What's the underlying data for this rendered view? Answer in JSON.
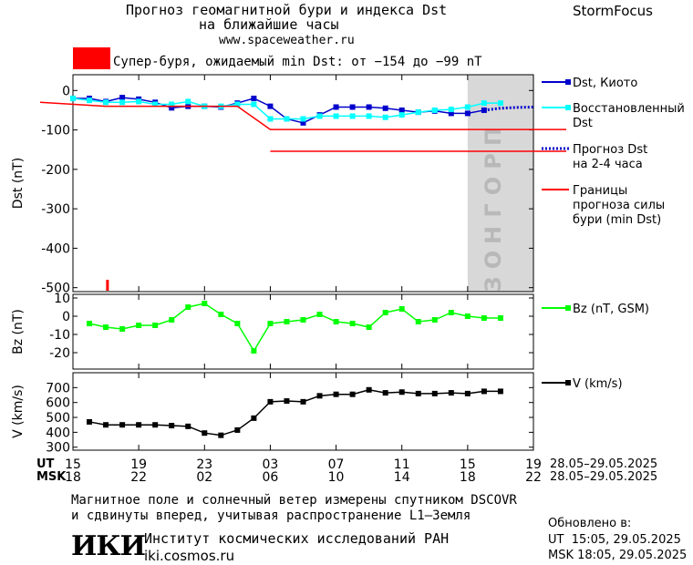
{
  "header": {
    "title_line1": "Прогноз геомагнитной бури и индекса Dst",
    "title_line2": "на ближайшие часы",
    "url": "www.spaceweather.ru",
    "brand": "StormFocus"
  },
  "alert": {
    "text": "Супер-буря, ожидаемый min Dst: от −154 до −99 nT",
    "color": "#ff0000"
  },
  "forecast_zone_label": "ПРОГНОЗ",
  "chart_data": [
    {
      "type": "line",
      "ylabel": "Dst (nT)",
      "ylim": [
        -510,
        40
      ],
      "yticks": [
        0,
        -100,
        -200,
        -300,
        -400,
        -500
      ],
      "grid": false,
      "legend_position": "right",
      "legend_entries": [
        "Dst, Киото",
        "Восстановленный Dst",
        "Прогноз Dst на 2-4 часа",
        "Границы прогноза силы бури (min Dst)"
      ],
      "series": [
        {
          "name": "Dst, Киото",
          "color": "#0000cc",
          "marker": "square",
          "x": [
            15,
            16,
            17,
            18,
            19,
            20,
            21,
            22,
            23,
            24,
            25,
            26,
            27,
            28,
            29,
            30,
            31,
            32,
            33,
            34,
            35,
            36,
            37,
            38,
            39,
            40
          ],
          "y": [
            -20,
            -20,
            -28,
            -18,
            -22,
            -30,
            -44,
            -40,
            -40,
            -42,
            -32,
            -20,
            -40,
            -72,
            -82,
            -62,
            -42,
            -42,
            -42,
            -45,
            -50,
            -55,
            -52,
            -58,
            -58,
            -50
          ]
        },
        {
          "name": "Восстановленный Dst",
          "color": "#00ffff",
          "marker": "square",
          "x": [
            15,
            16,
            17,
            18,
            19,
            20,
            21,
            22,
            23,
            24,
            25,
            26,
            27,
            28,
            29,
            30,
            31,
            32,
            33,
            34,
            35,
            36,
            37,
            38,
            39,
            40,
            41
          ],
          "y": [
            -20,
            -25,
            -30,
            -30,
            -28,
            -35,
            -35,
            -28,
            -40,
            -40,
            -35,
            -35,
            -72,
            -72,
            -72,
            -65,
            -65,
            -65,
            -65,
            -68,
            -62,
            -55,
            -50,
            -48,
            -42,
            -32,
            -32
          ]
        },
        {
          "name": "Прогноз Dst на 2-4 часа",
          "color": "#0000cc",
          "style": "dotted",
          "x": [
            40,
            41,
            42,
            43
          ],
          "y": [
            -50,
            -45,
            -43,
            -42
          ]
        },
        {
          "name": "Границы прогноза силы бури (min Dst)",
          "color": "#ff0000",
          "x": [
            13,
            17,
            25,
            27,
            45
          ],
          "y": [
            -30,
            -40,
            -40,
            -99,
            -99
          ]
        },
        {
          "name": "Границы прогноза силы бури (min Dst)",
          "color": "#ff0000",
          "x": [
            27,
            45
          ],
          "y": [
            -154,
            -154
          ]
        }
      ]
    },
    {
      "type": "line",
      "ylabel": "Bz (nT)",
      "ylim": [
        -29,
        12
      ],
      "yticks": [
        10,
        0,
        -10,
        -20
      ],
      "legend_position": "right",
      "legend_entries": [
        "Bz (nT, GSM)"
      ],
      "series": [
        {
          "name": "Bz (nT, GSM)",
          "color": "#00ff00",
          "marker": "square",
          "x": [
            16,
            17,
            18,
            19,
            20,
            21,
            22,
            23,
            24,
            25,
            26,
            27,
            28,
            29,
            30,
            31,
            32,
            33,
            34,
            35,
            36,
            37,
            38,
            39,
            40,
            41
          ],
          "y": [
            -4,
            -6,
            -7,
            -5,
            -5,
            -2,
            5,
            7,
            1,
            -4,
            -19,
            -4,
            -3,
            -2,
            1,
            -3,
            -4,
            -6,
            2,
            4,
            -3,
            -2,
            2,
            0,
            -1,
            -1
          ]
        }
      ]
    },
    {
      "type": "line",
      "ylabel": "V (km/s)",
      "ylim": [
        280,
        800
      ],
      "yticks": [
        700,
        600,
        500,
        400,
        300
      ],
      "legend_position": "right",
      "legend_entries": [
        "V (km/s)"
      ],
      "series": [
        {
          "name": "V (km/s)",
          "color": "#000000",
          "marker": "square",
          "x": [
            16,
            17,
            18,
            19,
            20,
            21,
            22,
            23,
            24,
            25,
            26,
            27,
            28,
            29,
            30,
            31,
            32,
            33,
            34,
            35,
            36,
            37,
            38,
            39,
            40,
            41
          ],
          "y": [
            470,
            450,
            450,
            450,
            450,
            445,
            440,
            395,
            380,
            415,
            495,
            605,
            610,
            605,
            645,
            655,
            655,
            685,
            665,
            670,
            660,
            660,
            665,
            660,
            675,
            675
          ]
        }
      ]
    }
  ],
  "x_axis": {
    "xlim": [
      15,
      43
    ],
    "ut_label": "UT",
    "msk_label": "MSK",
    "ut_ticks": [
      "15",
      "19",
      "23",
      "03",
      "07",
      "11",
      "15",
      "19"
    ],
    "msk_ticks": [
      "18",
      "22",
      "02",
      "06",
      "10",
      "14",
      "18",
      "22"
    ],
    "ut_tick_positions": [
      15,
      19,
      23,
      27,
      31,
      35,
      39,
      43
    ],
    "ut_range": "28.05–29.05.2025",
    "msk_range": "28.05–29.05.2025"
  },
  "footer": {
    "note_line1": "Магнитное поле и солнечный ветер измерены спутником DSCOVR",
    "note_line2": "и сдвинуты вперед, учитывая распространение L1–Земля",
    "logo_text": "ИКИ",
    "institute": "Институт космических исследований РАН",
    "site": "iki.cosmos.ru",
    "updated_label": "Обновлено в:",
    "updated_ut": "UT  15:05, 29.05.2025",
    "updated_msk": "MSK 18:05, 29.05.2025"
  }
}
